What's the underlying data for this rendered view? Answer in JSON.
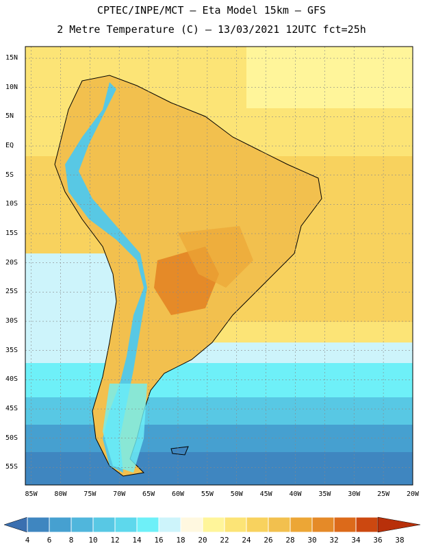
{
  "header": {
    "line1": "CPTEC/INPE/MCT –  Eta Model 15km – GFS",
    "line2": "2 Metre Temperature (C) – 13/03/2021 12UTC fct=25h"
  },
  "map": {
    "lon_range": [
      -86,
      -20
    ],
    "lat_range": [
      -58,
      17
    ],
    "lat_labels": [
      "15N",
      "10N",
      "5N",
      "EQ",
      "5S",
      "10S",
      "15S",
      "20S",
      "25S",
      "30S",
      "35S",
      "40S",
      "45S",
      "50S",
      "55S"
    ],
    "lon_labels": [
      "85W",
      "80W",
      "75W",
      "70W",
      "65W",
      "60W",
      "55W",
      "50W",
      "45W",
      "40W",
      "35W",
      "30W",
      "25W",
      "20W"
    ]
  },
  "colorbar": {
    "labels": [
      "4",
      "6",
      "8",
      "10",
      "12",
      "14",
      "16",
      "18",
      "20",
      "22",
      "24",
      "26",
      "28",
      "30",
      "32",
      "34",
      "36",
      "38"
    ],
    "colors": [
      "#3a6fb0",
      "#3f86c0",
      "#46a0d0",
      "#50b6dc",
      "#58c8e4",
      "#5ed8ec",
      "#6ef0f8",
      "#cdf4fb",
      "#fff8e0",
      "#fff59a",
      "#fce476",
      "#f8d25e",
      "#f2c04e",
      "#eca636",
      "#e58a28",
      "#dc6a1a",
      "#cc4810",
      "#b8300a"
    ]
  }
}
